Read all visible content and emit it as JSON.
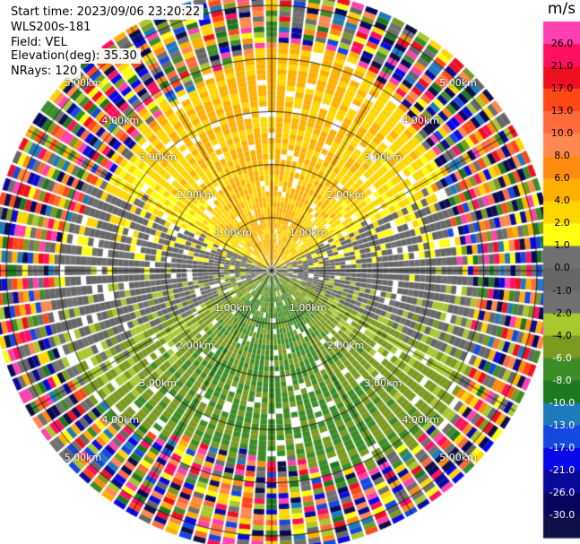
{
  "header": {
    "start_time": "Start time: 2023/09/06 23:20:22",
    "instrument": "WLS200s-181",
    "field": "Field: VEL",
    "elevation": "Elevation(deg): 35.30",
    "nrays": "NRays: 120"
  },
  "chart_data": {
    "type": "heatmap",
    "projection": "polar-ppi",
    "n_rays": 120,
    "range_rings_km": [
      1,
      2,
      3,
      4,
      5
    ],
    "ring_label_text": [
      "1.00km",
      "2.00km",
      "3.00km",
      "4.00km",
      "5.00km"
    ],
    "max_range_km": 5.3,
    "spokes_deg": [
      0,
      30,
      60,
      90,
      120,
      150,
      180,
      210,
      240,
      270,
      300,
      330
    ],
    "colorbar": {
      "title": "m/s",
      "ticks": [
        "26.0",
        "21.0",
        "17.0",
        "13.0",
        "10.0",
        "8.0",
        "6.0",
        "4.0",
        "2.0",
        "1.0",
        "0.0",
        "-1.0",
        "-2.0",
        "-4.0",
        "-6.0",
        "-8.0",
        "-10.0",
        "-13.0",
        "-17.0",
        "-21.0",
        "-26.0",
        "-30.0"
      ],
      "colors": [
        "#ff40b0",
        "#ff1060",
        "#ee1020",
        "#ff4818",
        "#ff6a3a",
        "#ff8850",
        "#ff8a10",
        "#ffb000",
        "#ffd600",
        "#ffff10",
        "#707070",
        "#666666",
        "#707070",
        "#a8c830",
        "#7a9a20",
        "#3c8c28",
        "#1e7820",
        "#1e7ab8",
        "#1448e0",
        "#0808e8",
        "#0a0a9a",
        "#06065c",
        "#101048"
      ]
    },
    "pattern": {
      "near_north": "yellow/orange (positive, 1 to 6 m/s)",
      "near_south": "green (negative, -2 to -8 m/s)",
      "near_east_west": "grey (near 0 m/s)",
      "far_range": "speckled noise across full colour scale"
    }
  }
}
